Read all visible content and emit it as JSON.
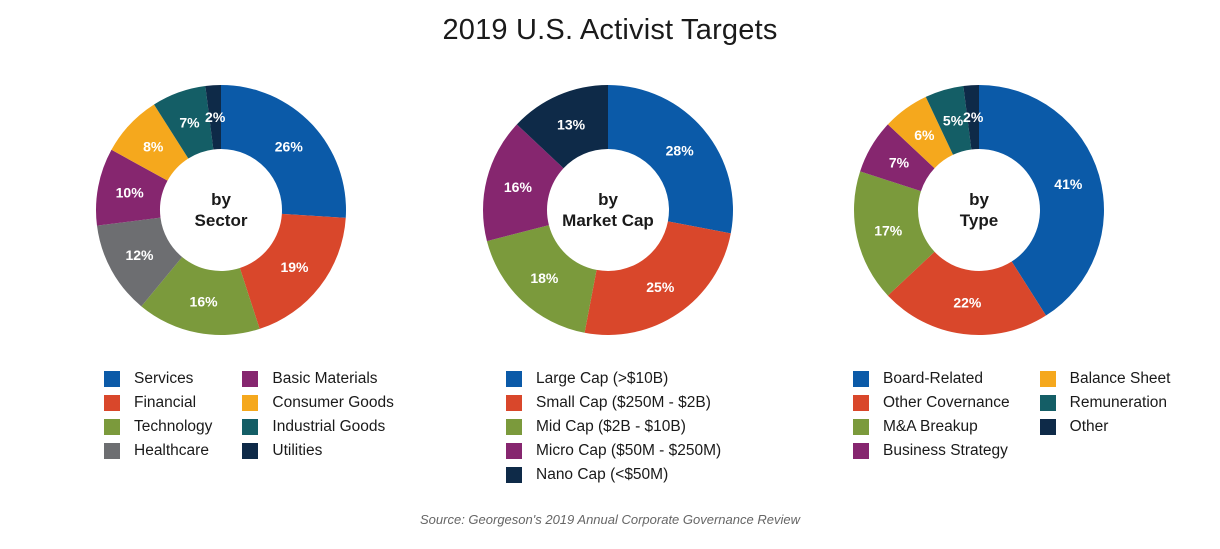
{
  "title": "2019 U.S. Activist Targets",
  "source": "Source: Georgeson's 2019 Annual Corporate Governance Review",
  "chart_data": [
    {
      "type": "pie",
      "center_label": [
        "by",
        "Sector"
      ],
      "categories": [
        "Services",
        "Financial",
        "Technology",
        "Healthcare",
        "Basic Materials",
        "Consumer Goods",
        "Industrial Goods",
        "Utilities"
      ],
      "values": [
        26,
        19,
        16,
        12,
        10,
        8,
        7,
        2
      ],
      "labels": [
        "26%",
        "19%",
        "16%",
        "12%",
        "10%",
        "8%",
        "7%",
        "2%"
      ],
      "colors": [
        "#0b5aa8",
        "#d9472b",
        "#7b9a3c",
        "#6d6e71",
        "#86266f",
        "#f5a81d",
        "#145e66",
        "#0e2a48"
      ],
      "legend_rows": 4
    },
    {
      "type": "pie",
      "center_label": [
        "by",
        "Market Cap"
      ],
      "categories": [
        "Large Cap (>$10B)",
        "Small Cap ($250M - $2B)",
        "Mid Cap ($2B - $10B)",
        "Micro Cap ($50M - $250M)",
        "Nano Cap (<$50M)"
      ],
      "values": [
        28,
        25,
        18,
        16,
        13
      ],
      "labels": [
        "28%",
        "25%",
        "18%",
        "16%",
        "13%"
      ],
      "colors": [
        "#0b5aa8",
        "#d9472b",
        "#7b9a3c",
        "#86266f",
        "#0e2a48"
      ],
      "legend_rows": 5
    },
    {
      "type": "pie",
      "center_label": [
        "by",
        "Type"
      ],
      "categories": [
        "Board-Related",
        "Other Covernance",
        "M&A Breakup",
        "Business Strategy",
        "Balance Sheet",
        "Remuneration",
        "Other"
      ],
      "values": [
        41,
        22,
        17,
        7,
        6,
        5,
        2
      ],
      "labels": [
        "41%",
        "22%",
        "17%",
        "7%",
        "6%",
        "5%",
        "2%"
      ],
      "colors": [
        "#0b5aa8",
        "#d9472b",
        "#7b9a3c",
        "#86266f",
        "#f5a81d",
        "#145e66",
        "#0e2a48"
      ],
      "legend_rows": 4
    }
  ]
}
